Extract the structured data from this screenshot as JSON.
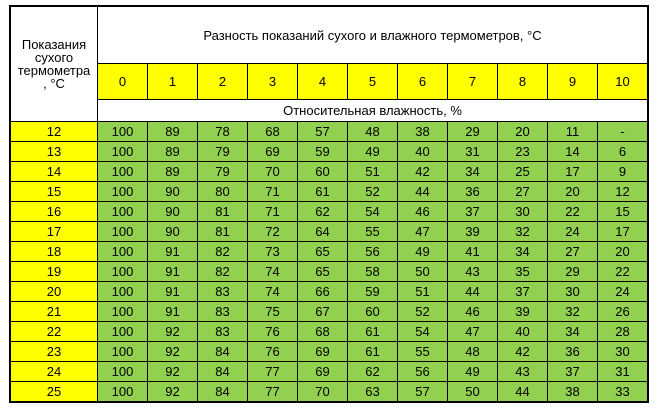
{
  "colors": {
    "header_yellow": "#ffff00",
    "cell_green": "#92d050",
    "border": "#000000",
    "background": "#ffffff"
  },
  "chart_data": {
    "type": "table",
    "title": "Разность показаний сухого и влажного термометров, °С",
    "corner_label": "Показания\nсухого\nтермометра\n, °С",
    "humidity_label": "Относительная влажность, %",
    "columns": [
      "0",
      "1",
      "2",
      "3",
      "4",
      "5",
      "6",
      "7",
      "8",
      "9",
      "10"
    ],
    "rows": [
      {
        "temp": "12",
        "values": [
          "100",
          "89",
          "78",
          "68",
          "57",
          "48",
          "38",
          "29",
          "20",
          "11",
          "-"
        ]
      },
      {
        "temp": "13",
        "values": [
          "100",
          "89",
          "79",
          "69",
          "59",
          "49",
          "40",
          "31",
          "23",
          "14",
          "6"
        ]
      },
      {
        "temp": "14",
        "values": [
          "100",
          "89",
          "79",
          "70",
          "60",
          "51",
          "42",
          "34",
          "25",
          "17",
          "9"
        ]
      },
      {
        "temp": "15",
        "values": [
          "100",
          "90",
          "80",
          "71",
          "61",
          "52",
          "44",
          "36",
          "27",
          "20",
          "12"
        ]
      },
      {
        "temp": "16",
        "values": [
          "100",
          "90",
          "81",
          "71",
          "62",
          "54",
          "46",
          "37",
          "30",
          "22",
          "15"
        ]
      },
      {
        "temp": "17",
        "values": [
          "100",
          "90",
          "81",
          "72",
          "64",
          "55",
          "47",
          "39",
          "32",
          "24",
          "17"
        ]
      },
      {
        "temp": "18",
        "values": [
          "100",
          "91",
          "82",
          "73",
          "65",
          "56",
          "49",
          "41",
          "34",
          "27",
          "20"
        ]
      },
      {
        "temp": "19",
        "values": [
          "100",
          "91",
          "82",
          "74",
          "65",
          "58",
          "50",
          "43",
          "35",
          "29",
          "22"
        ]
      },
      {
        "temp": "20",
        "values": [
          "100",
          "91",
          "83",
          "74",
          "66",
          "59",
          "51",
          "44",
          "37",
          "30",
          "24"
        ]
      },
      {
        "temp": "21",
        "values": [
          "100",
          "91",
          "83",
          "75",
          "67",
          "60",
          "52",
          "46",
          "39",
          "32",
          "26"
        ]
      },
      {
        "temp": "22",
        "values": [
          "100",
          "92",
          "83",
          "76",
          "68",
          "61",
          "54",
          "47",
          "40",
          "34",
          "28"
        ]
      },
      {
        "temp": "23",
        "values": [
          "100",
          "92",
          "84",
          "76",
          "69",
          "61",
          "55",
          "48",
          "42",
          "36",
          "30"
        ]
      },
      {
        "temp": "24",
        "values": [
          "100",
          "92",
          "84",
          "77",
          "69",
          "62",
          "56",
          "49",
          "43",
          "37",
          "31"
        ]
      },
      {
        "temp": "25",
        "values": [
          "100",
          "92",
          "84",
          "77",
          "70",
          "63",
          "57",
          "50",
          "44",
          "38",
          "33"
        ]
      }
    ]
  }
}
